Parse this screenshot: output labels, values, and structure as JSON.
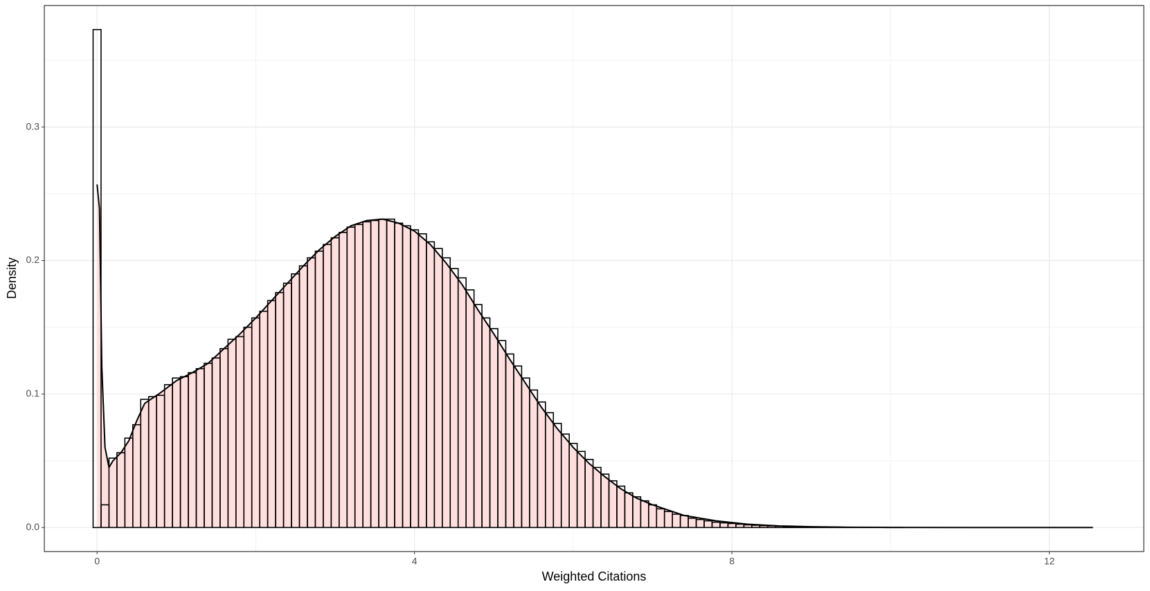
{
  "chart_data": {
    "type": "histogram",
    "x_label": "Weighted Citations",
    "y_label": "Density",
    "bins": [
      -0.05,
      0.05,
      0.15,
      0.25,
      0.35,
      0.45,
      0.55,
      0.65,
      0.75,
      0.85,
      0.95,
      1.05,
      1.15,
      1.25,
      1.35,
      1.45,
      1.55,
      1.65,
      1.75,
      1.85,
      1.95,
      2.05,
      2.15,
      2.25,
      2.35,
      2.45,
      2.55,
      2.65,
      2.75,
      2.85,
      2.95,
      3.05,
      3.15,
      3.25,
      3.35,
      3.45,
      3.55,
      3.65,
      3.75,
      3.85,
      3.95,
      4.05,
      4.15,
      4.25,
      4.35,
      4.45,
      4.55,
      4.65,
      4.75,
      4.85,
      4.95,
      5.05,
      5.15,
      5.25,
      5.35,
      5.45,
      5.55,
      5.65,
      5.75,
      5.85,
      5.95,
      6.05,
      6.15,
      6.25,
      6.35,
      6.45,
      6.55,
      6.65,
      6.75,
      6.85,
      6.95,
      7.05,
      7.15,
      7.25,
      7.35,
      7.45,
      7.55,
      7.65,
      7.75,
      7.85,
      7.95,
      8.05,
      8.15,
      8.25,
      8.35,
      8.45,
      8.55,
      8.65,
      8.75,
      8.85,
      8.95,
      9.05,
      9.15,
      9.25,
      9.35,
      9.45,
      9.55,
      9.65,
      9.75,
      9.85,
      9.95,
      10.05,
      10.15,
      10.25,
      10.35,
      10.45,
      10.55,
      10.65,
      10.75,
      10.85,
      10.95,
      11.05,
      11.15,
      11.25,
      11.35,
      11.45,
      11.55,
      11.65,
      11.75,
      11.85,
      11.95,
      12.05,
      12.15,
      12.25,
      12.35,
      12.45,
      12.55
    ],
    "counts": [
      0.373,
      0.017,
      0.052,
      0.056,
      0.067,
      0.077,
      0.096,
      0.098,
      0.099,
      0.107,
      0.112,
      0.113,
      0.116,
      0.119,
      0.123,
      0.127,
      0.134,
      0.141,
      0.143,
      0.15,
      0.157,
      0.162,
      0.17,
      0.176,
      0.183,
      0.19,
      0.196,
      0.202,
      0.207,
      0.212,
      0.217,
      0.221,
      0.225,
      0.227,
      0.229,
      0.23,
      0.231,
      0.231,
      0.228,
      0.226,
      0.223,
      0.22,
      0.214,
      0.209,
      0.202,
      0.194,
      0.187,
      0.178,
      0.167,
      0.157,
      0.149,
      0.14,
      0.13,
      0.121,
      0.112,
      0.103,
      0.094,
      0.086,
      0.078,
      0.07,
      0.063,
      0.057,
      0.051,
      0.045,
      0.04,
      0.035,
      0.031,
      0.026,
      0.023,
      0.02,
      0.017,
      0.014,
      0.012,
      0.01,
      0.009,
      0.007,
      0.006,
      0.005,
      0.004,
      0.0035,
      0.003,
      0.0025,
      0.002,
      0.0017,
      0.0014,
      0.0012,
      0.001,
      0.0008,
      0.0007,
      0.0006,
      0.0005,
      0.0004,
      0.0003,
      0.0003,
      0.0002,
      0.0002,
      0.0002,
      0.0001,
      0.0001,
      0.0001,
      0.0001,
      0.0001,
      0,
      0,
      0,
      0,
      0,
      0,
      0,
      0,
      0,
      0,
      0,
      0,
      0,
      0,
      0,
      0,
      0,
      0,
      0,
      0,
      0,
      0,
      0,
      0
    ],
    "bar_color": "#000000",
    "density": {
      "color": "#000000",
      "fill": "#ffdede",
      "x": [
        0,
        0.03,
        0.06,
        0.1,
        0.15,
        0.2,
        0.3,
        0.4,
        0.5,
        0.6,
        0.8,
        1.0,
        1.2,
        1.4,
        1.6,
        1.8,
        2.0,
        2.2,
        2.4,
        2.6,
        2.8,
        3.0,
        3.2,
        3.4,
        3.6,
        3.8,
        4.0,
        4.2,
        4.4,
        4.6,
        4.8,
        5.0,
        5.2,
        5.4,
        5.6,
        5.8,
        6.0,
        6.2,
        6.4,
        6.6,
        6.8,
        7.0,
        7.4,
        7.8,
        8.2,
        8.6,
        9.0,
        9.5,
        10,
        11,
        12,
        12.55
      ],
      "values": [
        0.257,
        0.239,
        0.12,
        0.06,
        0.045,
        0.05,
        0.056,
        0.065,
        0.08,
        0.093,
        0.101,
        0.11,
        0.116,
        0.123,
        0.134,
        0.145,
        0.157,
        0.17,
        0.183,
        0.196,
        0.208,
        0.218,
        0.226,
        0.23,
        0.231,
        0.228,
        0.222,
        0.212,
        0.198,
        0.182,
        0.163,
        0.145,
        0.126,
        0.108,
        0.09,
        0.074,
        0.06,
        0.048,
        0.038,
        0.029,
        0.022,
        0.017,
        0.009,
        0.005,
        0.0025,
        0.0012,
        0.0006,
        0.0002,
        0.0001,
        0,
        0,
        0
      ]
    },
    "xlim": [
      -0.665,
      13.19
    ],
    "ylim": [
      -0.018,
      0.391
    ],
    "xticks": [
      0,
      4,
      8,
      12
    ],
    "yticks": [
      {
        "value": 0,
        "label": "0.0"
      },
      0.1,
      0.2,
      0.3
    ],
    "grid": true
  }
}
